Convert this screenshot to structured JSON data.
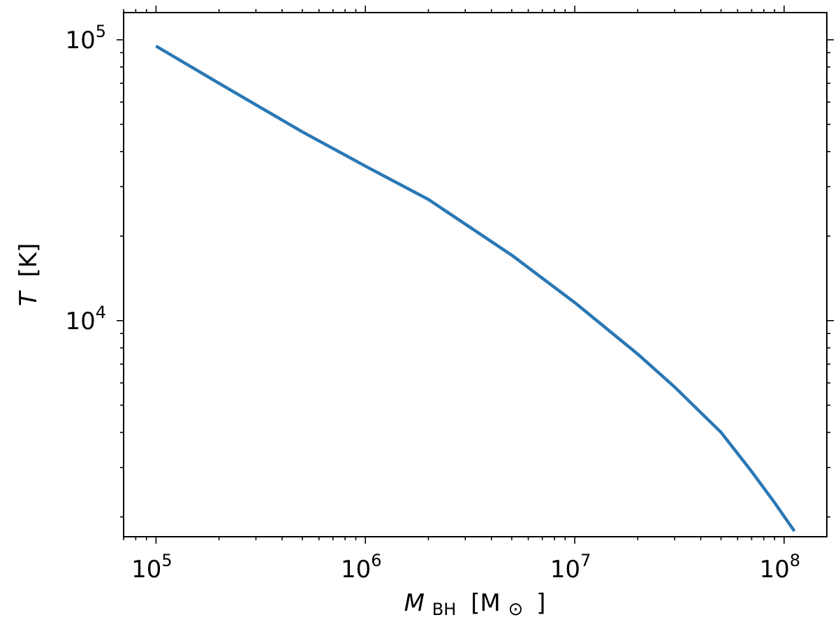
{
  "chart_data": {
    "type": "line",
    "xscale": "log",
    "yscale": "log",
    "xlim": [
      70000,
      160000000
    ],
    "ylim": [
      1700,
      125000
    ],
    "xlabel": {
      "var": "M",
      "sub": "BH",
      "unit": "[M",
      "sun": "⊙",
      "close": "]"
    },
    "ylabel": {
      "var": "T",
      "unit": "[K]"
    },
    "x_ticks": [
      {
        "value": 100000,
        "base": "10",
        "exp": "5"
      },
      {
        "value": 1000000,
        "base": "10",
        "exp": "6"
      },
      {
        "value": 10000000,
        "base": "10",
        "exp": "7"
      },
      {
        "value": 100000000,
        "base": "10",
        "exp": "8"
      }
    ],
    "y_ticks": [
      {
        "value": 10000,
        "base": "10",
        "exp": "4"
      },
      {
        "value": 100000,
        "base": "10",
        "exp": "5"
      }
    ],
    "grid": false,
    "line_color": "#2a78b5",
    "series": [
      {
        "x": [
          100000,
          200000,
          500000,
          1000000,
          2000000,
          5000000,
          10000000,
          20000000,
          30000000,
          50000000,
          70000000,
          90000000,
          112000000
        ],
        "y": [
          95000,
          70000,
          47000,
          35500,
          27000,
          17100,
          11600,
          7600,
          5800,
          4000,
          2900,
          2250,
          1780
        ]
      }
    ]
  }
}
